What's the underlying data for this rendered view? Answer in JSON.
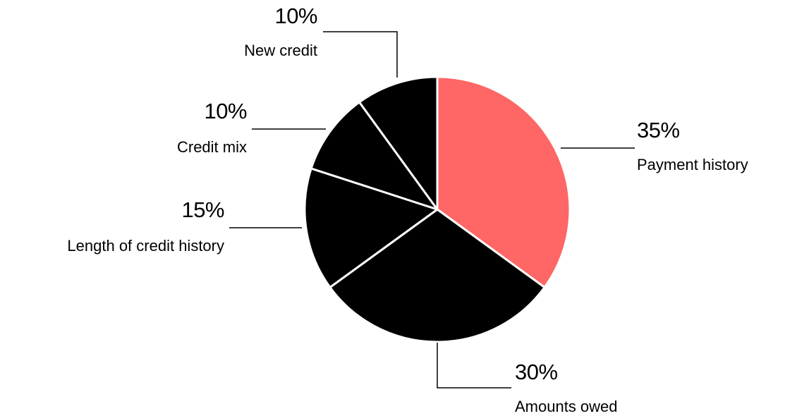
{
  "chart_data": {
    "type": "pie",
    "categories": [
      "Payment history",
      "Amounts owed",
      "Length of credit history",
      "Credit mix",
      "New credit"
    ],
    "values": [
      35,
      30,
      15,
      10,
      10
    ],
    "value_labels": [
      "35%",
      "30%",
      "15%",
      "10%",
      "10%"
    ],
    "colors": [
      "#ff6666",
      "#000000",
      "#000000",
      "#000000",
      "#000000"
    ]
  }
}
